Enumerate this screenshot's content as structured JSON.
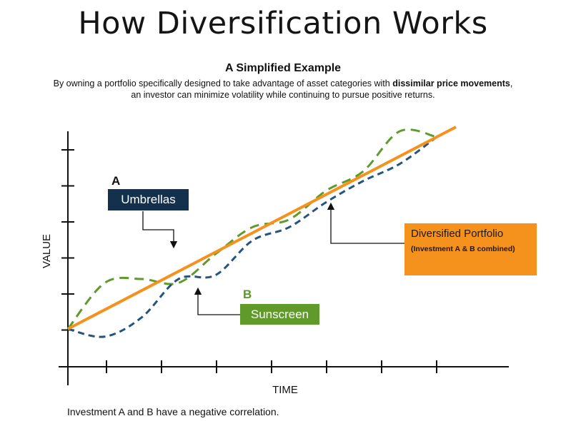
{
  "header": {
    "title": "How Diversification Works",
    "subtitle": "A Simplified Example",
    "desc_part1": "By owning a portfolio specifically designed to take advantage of asset categories with ",
    "desc_bold": "dissimilar price movements",
    "desc_part2": ",",
    "desc_line2": "an investor can minimize volatility while continuing to pursue positive returns."
  },
  "labels": {
    "a_letter": "A",
    "a_name": "Umbrellas",
    "b_letter": "B",
    "b_name": "Sunscreen",
    "portfolio_name": "Diversified Portfolio",
    "portfolio_note": "(Investment A & B combined)"
  },
  "footnote": "Investment A and B have a negative correlation.",
  "colors": {
    "umbrellas": "#24557d",
    "sunscreen": "#5f9a2b",
    "portfolio": "#f5921e",
    "umbrellas_box": "#13304d",
    "axis": "#111111"
  },
  "chart_data": {
    "type": "line",
    "xlabel": "TIME",
    "ylabel": "VALUE",
    "x_ticks": 7,
    "y_ticks": 6,
    "grid": false,
    "legend": "none",
    "series": [
      {
        "name": "Diversified Portfolio",
        "style": "solid",
        "x": [
          0,
          1
        ],
        "y": [
          0,
          1
        ]
      },
      {
        "name": "Umbrellas",
        "style": "dashed",
        "x": [
          0,
          0.1,
          0.2,
          0.3,
          0.4,
          0.5,
          0.6,
          0.7,
          0.8,
          0.9,
          1
        ],
        "y": [
          0,
          -0.04,
          0.06,
          0.26,
          0.28,
          0.46,
          0.53,
          0.66,
          0.77,
          0.86,
          1
        ]
      },
      {
        "name": "Sunscreen",
        "style": "dashed",
        "x": [
          0,
          0.1,
          0.2,
          0.3,
          0.4,
          0.5,
          0.6,
          0.7,
          0.8,
          0.9,
          1
        ],
        "y": [
          0,
          0.24,
          0.26,
          0.24,
          0.39,
          0.53,
          0.57,
          0.72,
          0.82,
          1.03,
          1
        ]
      }
    ]
  }
}
